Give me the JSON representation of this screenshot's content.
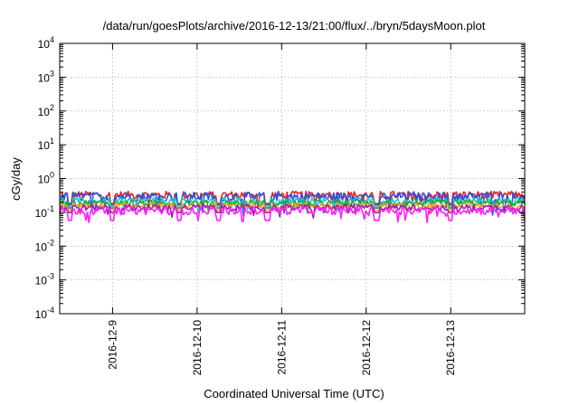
{
  "chart_data": {
    "type": "line",
    "title": "/data/run/goesPlots/archive/2016-12-13/21:00/flux/../bryn/5daysMoon.plot",
    "xlabel": "Coordinated Universal Time (UTC)",
    "ylabel": "cGy/day",
    "yscale": "log",
    "ylim": [
      0.0001,
      10000
    ],
    "xlim": [
      "2016-12-08T09:00",
      "2016-12-13T21:00"
    ],
    "grid": true,
    "x_ticks": [
      "2016-12-9",
      "2016-12-10",
      "2016-12-11",
      "2016-12-12",
      "2016-12-13"
    ],
    "y_ticks": [
      {
        "base": "10",
        "exp": "-4",
        "value": 0.0001
      },
      {
        "base": "10",
        "exp": "-3",
        "value": 0.001
      },
      {
        "base": "10",
        "exp": "-2",
        "value": 0.01
      },
      {
        "base": "10",
        "exp": "-1",
        "value": 0.1
      },
      {
        "base": "10",
        "exp": "0",
        "value": 1
      },
      {
        "base": "10",
        "exp": "1",
        "value": 10
      },
      {
        "base": "10",
        "exp": "2",
        "value": 100
      },
      {
        "base": "10",
        "exp": "3",
        "value": 1000
      },
      {
        "base": "10",
        "exp": "4",
        "value": 10000
      }
    ],
    "series": [
      {
        "color": "#e8201f",
        "baseline": 0.33,
        "noise": 0.09,
        "dip": 0.55
      },
      {
        "color": "#2255e6",
        "baseline": 0.3,
        "noise": 0.09,
        "dip": 0.55
      },
      {
        "color": "#1fc9c9",
        "baseline": 0.22,
        "noise": 0.05,
        "dip": 0.65
      },
      {
        "color": "#22aa33",
        "baseline": 0.19,
        "noise": 0.04,
        "dip": 0.7
      },
      {
        "color": "#f0a020",
        "baseline": 0.16,
        "noise": 0.03,
        "dip": 0.72
      },
      {
        "color": "#9b1fb0",
        "baseline": 0.14,
        "noise": 0.03,
        "dip": 0.7
      },
      {
        "color": "#ff20ff",
        "baseline": 0.115,
        "noise": 0.03,
        "dip": 0.5
      }
    ],
    "dip_dates": [
      "2016-12-08T12:00",
      "2016-12-09T00:00",
      "2016-12-09T19:00",
      "2016-12-10T06:00",
      "2016-12-10T20:00",
      "2016-12-12T03:00",
      "2016-12-13T00:00"
    ],
    "points_per_series": 320
  }
}
